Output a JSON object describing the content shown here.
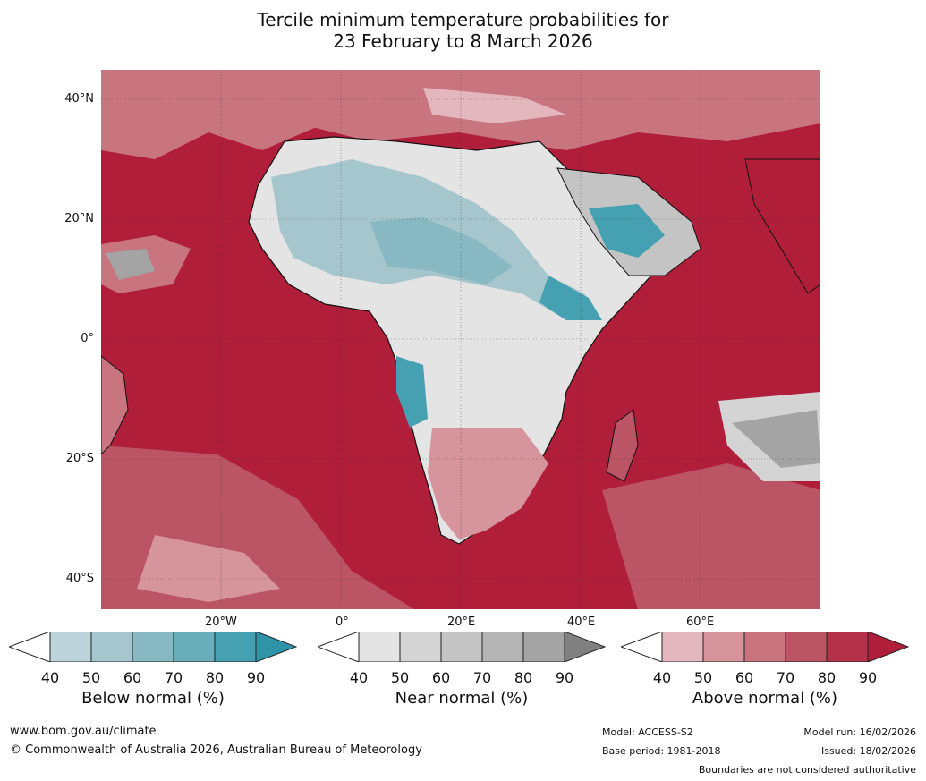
{
  "title_line1": "Tercile minimum temperature probabilities for",
  "title_line2": "23 February to 8 March 2026",
  "lat_labels": [
    "40°N",
    "20°N",
    "0°",
    "20°S",
    "40°S"
  ],
  "lon_labels": [
    "20°W",
    "0°",
    "20°E",
    "40°E",
    "60°E"
  ],
  "colorbars": [
    {
      "label": "Below normal (%)",
      "ticks": [
        "40",
        "50",
        "60",
        "70",
        "80",
        "90"
      ],
      "colors": [
        "#ffffff",
        "#bcd3da",
        "#a6c6cd",
        "#88b8c1",
        "#6aaebb",
        "#45a0b1",
        "#2e94a8"
      ]
    },
    {
      "label": "Near normal (%)",
      "ticks": [
        "40",
        "50",
        "60",
        "70",
        "80",
        "90"
      ],
      "colors": [
        "#ffffff",
        "#e4e4e4",
        "#d4d4d4",
        "#c4c4c4",
        "#b4b4b4",
        "#a4a4a4",
        "#808080"
      ]
    },
    {
      "label": "Above normal (%)",
      "ticks": [
        "40",
        "50",
        "60",
        "70",
        "80",
        "90"
      ],
      "colors": [
        "#ffffff",
        "#e3b7bd",
        "#d6949c",
        "#c97580",
        "#bb5465",
        "#b3324a",
        "#b01e3a"
      ]
    }
  ],
  "footer": {
    "url": "www.bom.gov.au/climate",
    "copyright": "© Commonwealth of Australia 2026, Australian Bureau of Meteorology",
    "model": "Model: ACCESS-S2",
    "base_period": "Base period: 1981-2018",
    "model_run": "Model run: 16/02/2026",
    "issued": "Issued: 18/02/2026",
    "boundaries": "Boundaries are not considered authoritative"
  },
  "colors": {
    "ocean_above": "#b01e3a",
    "below": "#45a0b1",
    "near": "#c4c4c4"
  }
}
